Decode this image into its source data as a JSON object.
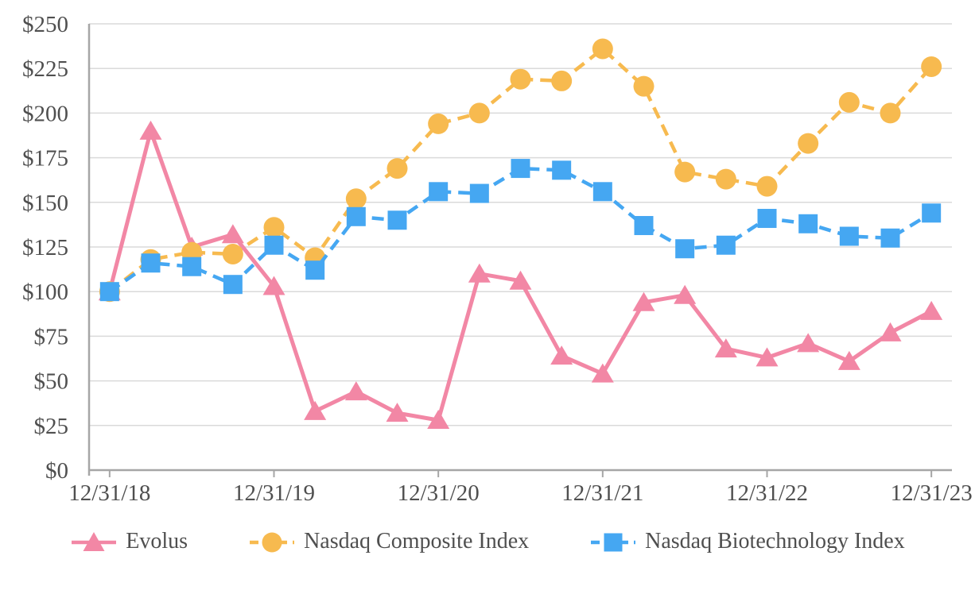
{
  "chart_data": {
    "type": "line",
    "title": "",
    "xlabel": "",
    "ylabel": "",
    "x_tick_labels": [
      "12/31/18",
      "12/31/19",
      "12/31/20",
      "12/31/21",
      "12/31/22",
      "12/31/23"
    ],
    "points_per_label": 4,
    "n_points": 21,
    "y_ticks": [
      "$0",
      "$25",
      "$50",
      "$75",
      "$100",
      "$125",
      "$150",
      "$175",
      "$200",
      "$225",
      "$250"
    ],
    "ylim": [
      0,
      250
    ],
    "grid": true,
    "legend_position": "bottom",
    "colors": {
      "axis_text": "#4f4f4f",
      "axis_line": "#a6a6a6",
      "gridline": "#dadada",
      "evolus": "#f287a5",
      "nasdaq_composite": "#f7ba4f",
      "nasdaq_biotech": "#45a7f2"
    },
    "series": [
      {
        "id": "evolus",
        "name": "Evolus",
        "color": "#f287a5",
        "marker": "triangle",
        "line_style": "solid",
        "values": [
          100,
          190,
          125,
          132,
          103,
          33,
          44,
          32,
          28,
          110,
          106,
          64,
          54,
          94,
          98,
          68,
          63,
          71,
          61,
          77,
          89
        ]
      },
      {
        "id": "nasdaq-composite",
        "name": "Nasdaq Composite Index",
        "color": "#f7ba4f",
        "marker": "circle",
        "line_style": "dashed",
        "values": [
          100,
          118,
          122,
          121,
          136,
          119,
          152,
          169,
          194,
          200,
          219,
          218,
          236,
          215,
          167,
          163,
          159,
          183,
          206,
          200,
          226
        ]
      },
      {
        "id": "nasdaq-biotech",
        "name": "Nasdaq Biotechnology Index",
        "color": "#45a7f2",
        "marker": "square",
        "line_style": "dashed",
        "values": [
          100,
          116,
          114,
          104,
          126,
          112,
          142,
          140,
          156,
          155,
          169,
          168,
          156,
          137,
          124,
          126,
          141,
          138,
          131,
          130,
          144
        ]
      }
    ]
  }
}
